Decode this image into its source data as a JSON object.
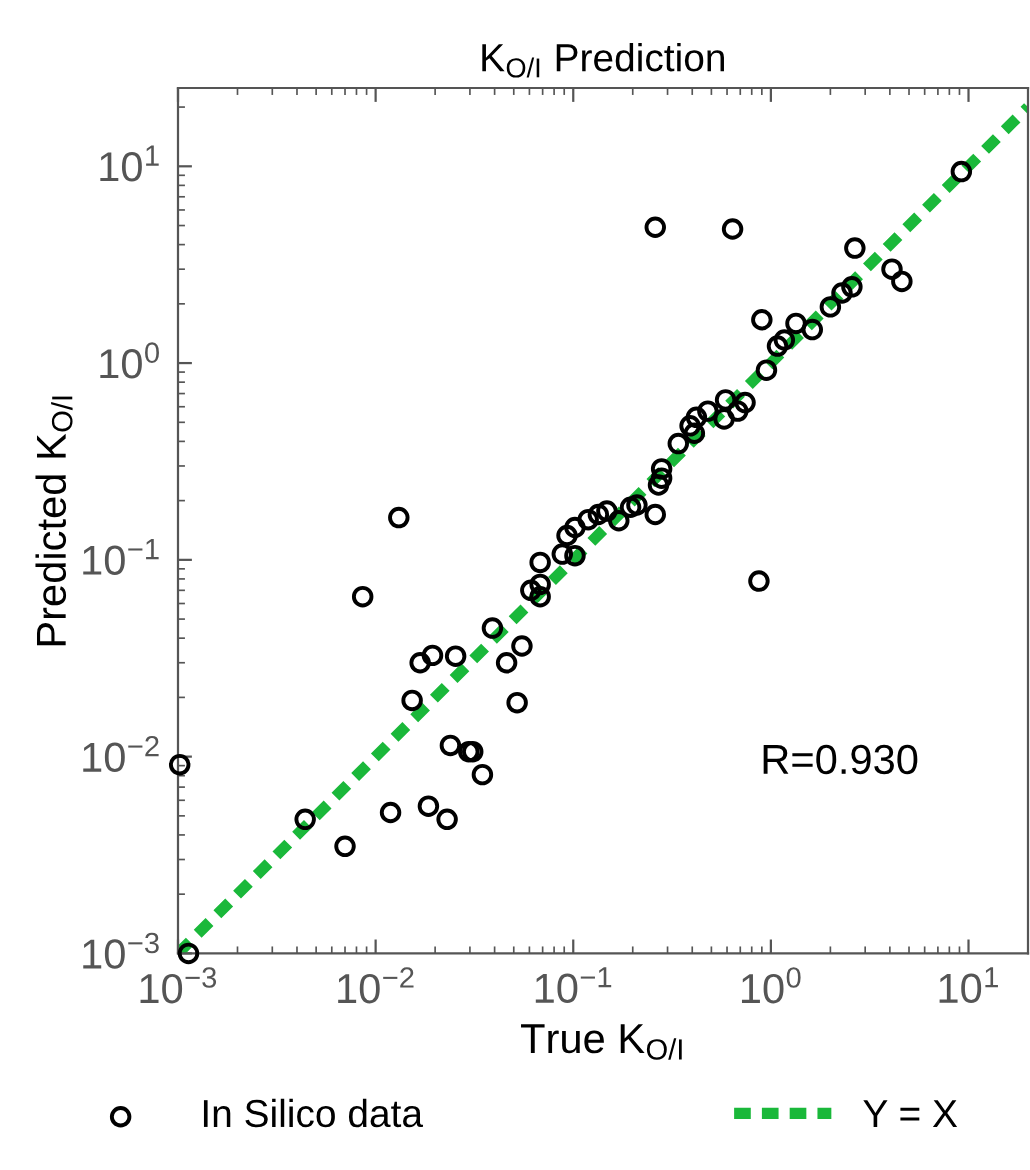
{
  "chart_data": {
    "type": "scatter",
    "title": "K$_{O/I}$ Prediction",
    "xlabel": "True K$_{O/I}$",
    "ylabel": "Predicted K$_{O/I}$",
    "annotations": [
      "R=0.930"
    ],
    "log": "xy",
    "xlim": [
      0.001,
      20
    ],
    "ylim": [
      0.001,
      25
    ],
    "xticks": [
      {
        "value": 0.001,
        "label": "10$^{−3}$"
      },
      {
        "value": 0.01,
        "label": "10$^{−2}$"
      },
      {
        "value": 0.1,
        "label": "10$^{−1}$"
      },
      {
        "value": 1,
        "label": "10$^{0}$"
      },
      {
        "value": 10,
        "label": "10$^{1}$"
      }
    ],
    "yticks": [
      {
        "value": 0.001,
        "label": "10$^{−3}$"
      },
      {
        "value": 0.01,
        "label": "10$^{−2}$"
      },
      {
        "value": 0.1,
        "label": "10$^{−1}$"
      },
      {
        "value": 1,
        "label": "10$^{0}$"
      },
      {
        "value": 10,
        "label": "10$^{1}$"
      }
    ],
    "grid": false,
    "legend": "bottom",
    "series": [
      {
        "name": "In Silico data",
        "marker": "circle",
        "color": "#000000",
        "x": [
          0.26,
          0.64,
          9.2,
          2.66,
          4.1,
          4.6,
          2.57,
          2.29,
          2.0,
          1.62,
          1.34,
          1.17,
          1.08,
          0.9,
          0.95,
          0.74,
          0.68,
          0.59,
          0.58,
          0.48,
          0.42,
          0.41,
          0.39,
          0.34,
          0.28,
          0.28,
          0.27,
          0.26,
          0.21,
          0.195,
          0.17,
          0.148,
          0.134,
          0.119,
          0.102,
          0.093,
          0.0131,
          0.0086,
          0.068,
          0.088,
          0.102,
          0.061,
          0.068,
          0.068,
          0.039,
          0.055,
          0.046,
          0.0254,
          0.0194,
          0.0168,
          0.0153,
          0.052,
          0.0239,
          0.031,
          0.0296,
          0.0347,
          0.00102,
          0.0044,
          0.007,
          0.0119,
          0.0185,
          0.023,
          0.00113,
          0.87
        ],
        "values": [
          4.9,
          4.8,
          9.4,
          3.84,
          3.0,
          2.6,
          2.44,
          2.27,
          1.93,
          1.48,
          1.59,
          1.31,
          1.22,
          1.66,
          0.92,
          0.63,
          0.57,
          0.65,
          0.52,
          0.57,
          0.53,
          0.44,
          0.48,
          0.39,
          0.29,
          0.26,
          0.24,
          0.17,
          0.19,
          0.185,
          0.158,
          0.177,
          0.17,
          0.16,
          0.146,
          0.133,
          0.164,
          0.065,
          0.097,
          0.107,
          0.105,
          0.07,
          0.075,
          0.065,
          0.045,
          0.0365,
          0.03,
          0.0324,
          0.0327,
          0.03,
          0.0193,
          0.0188,
          0.0114,
          0.0106,
          0.0106,
          0.0081,
          0.0091,
          0.0048,
          0.0035,
          0.0052,
          0.0056,
          0.0048,
          0.001,
          0.078
        ]
      },
      {
        "name": "Y = X",
        "type": "line",
        "marker": "none",
        "line_style": "dashed",
        "color": "#1ab83a",
        "x": [
          0.001,
          20
        ],
        "values": [
          0.001,
          20
        ]
      }
    ]
  }
}
